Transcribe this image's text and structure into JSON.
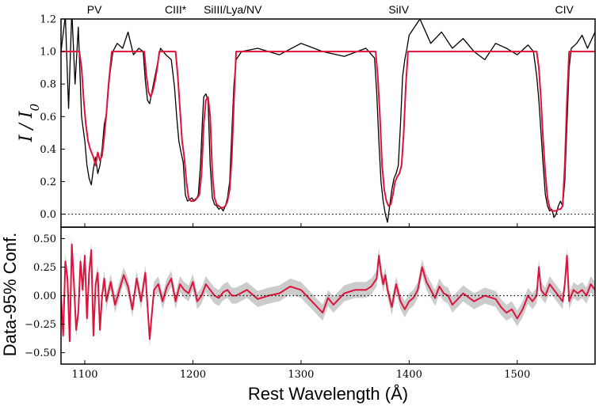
{
  "chart_data": [
    {
      "type": "line",
      "panel": "top",
      "ylabel": "I / I0",
      "xlim": [
        1078,
        1572
      ],
      "ylim": [
        -0.08,
        1.2
      ],
      "yticks": [
        "0.0",
        "0.2",
        "0.4",
        "0.6",
        "0.8",
        "1.0",
        "1.2"
      ],
      "ytick_values": [
        0.0,
        0.2,
        0.4,
        0.6,
        0.8,
        1.0,
        1.2
      ],
      "reference_line": {
        "y": 0.0,
        "style": "dotted"
      },
      "ion_labels": [
        {
          "text": "PV",
          "x": 1102
        },
        {
          "text": "CIII*",
          "x": 1174
        },
        {
          "text": "SiIII/Lya/NV",
          "x": 1210
        },
        {
          "text": "SiIV",
          "x": 1381
        },
        {
          "text": "CIV",
          "x": 1535
        }
      ],
      "series": [
        {
          "color": "#000000",
          "x": [
            1078,
            1082,
            1085,
            1088,
            1091,
            1094,
            1097,
            1100,
            1102,
            1104,
            1106,
            1108,
            1110,
            1112,
            1114,
            1116,
            1118,
            1120,
            1123,
            1126,
            1130,
            1135,
            1140,
            1145,
            1150,
            1154,
            1156,
            1158,
            1160,
            1162,
            1165,
            1170,
            1175,
            1180,
            1183,
            1185,
            1187,
            1189,
            1191,
            1193,
            1195,
            1197,
            1199,
            1201,
            1203,
            1205,
            1207,
            1209,
            1210,
            1212,
            1214,
            1216,
            1218,
            1220,
            1222,
            1224,
            1226,
            1228,
            1230,
            1232,
            1234,
            1236,
            1238,
            1240,
            1245,
            1260,
            1280,
            1300,
            1320,
            1340,
            1360,
            1368,
            1370,
            1372,
            1374,
            1376,
            1378,
            1380,
            1382,
            1384,
            1386,
            1388,
            1390,
            1392,
            1394,
            1396,
            1398,
            1400,
            1410,
            1420,
            1430,
            1440,
            1450,
            1460,
            1470,
            1480,
            1490,
            1500,
            1510,
            1515,
            1518,
            1520,
            1522,
            1524,
            1526,
            1528,
            1530,
            1532,
            1534,
            1536,
            1538,
            1540,
            1542,
            1544,
            1546,
            1548,
            1550,
            1555,
            1560,
            1565,
            1572
          ],
          "y": [
            1.0,
            1.22,
            0.65,
            1.25,
            0.8,
            1.15,
            0.6,
            0.45,
            0.3,
            0.22,
            0.18,
            0.28,
            0.35,
            0.25,
            0.3,
            0.4,
            0.55,
            0.62,
            0.85,
            1.0,
            1.05,
            1.02,
            1.12,
            0.98,
            1.02,
            1.0,
            0.82,
            0.7,
            0.68,
            0.75,
            0.85,
            1.02,
            0.98,
            0.95,
            0.78,
            0.6,
            0.45,
            0.38,
            0.32,
            0.12,
            0.08,
            0.09,
            0.1,
            0.08,
            0.09,
            0.12,
            0.3,
            0.6,
            0.72,
            0.74,
            0.7,
            0.3,
            0.1,
            0.06,
            0.05,
            0.03,
            0.04,
            0.02,
            0.05,
            0.1,
            0.2,
            0.5,
            0.8,
            0.95,
            1.0,
            1.02,
            0.98,
            1.05,
            1.0,
            0.97,
            1.02,
            0.96,
            0.75,
            0.45,
            0.2,
            0.08,
            0.0,
            -0.05,
            0.05,
            0.15,
            0.22,
            0.25,
            0.3,
            0.55,
            0.85,
            0.95,
            1.02,
            1.1,
            1.2,
            1.05,
            1.12,
            1.02,
            1.08,
            1.0,
            0.95,
            1.05,
            1.02,
            0.98,
            1.04,
            1.0,
            0.85,
            0.7,
            0.5,
            0.3,
            0.12,
            0.05,
            0.02,
            0.03,
            -0.02,
            0.0,
            0.05,
            0.08,
            0.05,
            0.2,
            0.55,
            0.9,
            1.02,
            1.05,
            1.1,
            1.02,
            1.12
          ]
        },
        {
          "color": "#dc143c",
          "x": [
            1078,
            1095,
            1097,
            1099,
            1101,
            1103,
            1105,
            1108,
            1110,
            1112,
            1114,
            1116,
            1118,
            1120,
            1122,
            1125,
            1155,
            1157,
            1159,
            1161,
            1163,
            1165,
            1167,
            1169,
            1184,
            1186,
            1188,
            1190,
            1192,
            1194,
            1196,
            1198,
            1200,
            1202,
            1204,
            1206,
            1208,
            1210,
            1212,
            1214,
            1216,
            1218,
            1220,
            1222,
            1224,
            1226,
            1228,
            1230,
            1232,
            1234,
            1236,
            1238,
            1240,
            1369,
            1371,
            1373,
            1375,
            1377,
            1379,
            1381,
            1383,
            1385,
            1387,
            1389,
            1391,
            1393,
            1395,
            1397,
            1399,
            1518,
            1520,
            1522,
            1524,
            1526,
            1528,
            1530,
            1532,
            1534,
            1536,
            1538,
            1540,
            1542,
            1544,
            1546,
            1548,
            1572
          ],
          "y": [
            1.0,
            1.0,
            0.9,
            0.7,
            0.55,
            0.45,
            0.4,
            0.35,
            0.3,
            0.38,
            0.33,
            0.36,
            0.48,
            0.62,
            0.8,
            1.0,
            1.0,
            0.85,
            0.75,
            0.72,
            0.76,
            0.82,
            0.9,
            1.0,
            1.0,
            0.85,
            0.65,
            0.45,
            0.35,
            0.2,
            0.1,
            0.08,
            0.08,
            0.09,
            0.1,
            0.12,
            0.25,
            0.55,
            0.7,
            0.72,
            0.6,
            0.25,
            0.1,
            0.06,
            0.05,
            0.04,
            0.04,
            0.05,
            0.08,
            0.15,
            0.35,
            0.7,
            1.0,
            1.0,
            0.85,
            0.6,
            0.3,
            0.15,
            0.08,
            0.05,
            0.06,
            0.12,
            0.2,
            0.23,
            0.25,
            0.3,
            0.5,
            0.8,
            1.0,
            1.0,
            0.9,
            0.7,
            0.45,
            0.25,
            0.1,
            0.04,
            0.02,
            0.02,
            0.02,
            0.03,
            0.03,
            0.05,
            0.3,
            0.7,
            1.0,
            1.0
          ]
        }
      ]
    },
    {
      "type": "line",
      "panel": "bottom",
      "title": "",
      "xlabel": "Rest Wavelength (Å)",
      "ylabel": "Data-95% Conf.",
      "xlim": [
        1078,
        1572
      ],
      "ylim": [
        -0.6,
        0.6
      ],
      "xticks": [
        "1100",
        "1200",
        "1300",
        "1400",
        "1500"
      ],
      "xtick_values": [
        1100,
        1200,
        1300,
        1400,
        1500
      ],
      "yticks": [
        "−0.50",
        "−0.25",
        "0.00",
        "0.25",
        "0.50"
      ],
      "ytick_values": [
        -0.5,
        -0.25,
        0.0,
        0.25,
        0.5
      ],
      "reference_line": {
        "y": 0.0,
        "style": "dotted"
      },
      "series": [
        {
          "color": "#dc143c",
          "band_color": "#cccccc",
          "x": [
            1078,
            1080,
            1082,
            1084,
            1086,
            1088,
            1090,
            1092,
            1094,
            1096,
            1098,
            1100,
            1102,
            1104,
            1106,
            1108,
            1110,
            1112,
            1114,
            1116,
            1118,
            1120,
            1124,
            1128,
            1132,
            1136,
            1140,
            1144,
            1148,
            1152,
            1156,
            1160,
            1164,
            1168,
            1172,
            1176,
            1180,
            1184,
            1188,
            1192,
            1196,
            1200,
            1204,
            1208,
            1212,
            1216,
            1220,
            1224,
            1228,
            1232,
            1236,
            1240,
            1250,
            1260,
            1270,
            1280,
            1290,
            1300,
            1310,
            1320,
            1325,
            1330,
            1340,
            1350,
            1360,
            1365,
            1370,
            1372,
            1374,
            1376,
            1378,
            1380,
            1384,
            1388,
            1392,
            1396,
            1400,
            1404,
            1408,
            1412,
            1416,
            1420,
            1424,
            1428,
            1432,
            1436,
            1440,
            1450,
            1460,
            1470,
            1480,
            1485,
            1490,
            1495,
            1500,
            1505,
            1510,
            1514,
            1518,
            1520,
            1522,
            1526,
            1530,
            1534,
            1538,
            1542,
            1544,
            1546,
            1548,
            1552,
            1556,
            1560,
            1564,
            1568,
            1572
          ],
          "y": [
            0.0,
            -0.35,
            0.3,
            0.15,
            -0.4,
            0.45,
            0.1,
            -0.3,
            -0.15,
            0.3,
            0.05,
            0.35,
            -0.2,
            0.2,
            0.4,
            -0.35,
            0.1,
            0.2,
            -0.3,
            0.0,
            0.15,
            -0.05,
            0.12,
            -0.08,
            0.05,
            0.18,
            0.08,
            -0.12,
            0.15,
            -0.05,
            0.2,
            -0.38,
            0.05,
            0.1,
            -0.05,
            0.08,
            0.15,
            -0.05,
            0.1,
            0.05,
            0.02,
            0.12,
            -0.05,
            0.0,
            0.1,
            0.05,
            0.0,
            -0.02,
            0.03,
            0.05,
            0.0,
            0.0,
            0.05,
            -0.03,
            0.0,
            0.02,
            0.08,
            0.05,
            -0.05,
            -0.15,
            -0.02,
            -0.08,
            0.02,
            0.05,
            0.05,
            0.08,
            0.15,
            0.35,
            0.2,
            0.1,
            0.18,
            0.05,
            -0.1,
            0.1,
            -0.05,
            -0.12,
            -0.05,
            -0.02,
            0.05,
            0.25,
            0.12,
            0.05,
            -0.02,
            0.08,
            0.02,
            0.0,
            -0.08,
            0.02,
            -0.05,
            0.0,
            -0.03,
            -0.1,
            -0.15,
            -0.12,
            -0.2,
            -0.12,
            0.0,
            -0.05,
            0.0,
            0.25,
            0.05,
            0.0,
            0.1,
            0.05,
            0.0,
            -0.05,
            0.1,
            0.35,
            -0.05,
            0.05,
            0.02,
            0.05,
            0.0,
            0.1,
            0.05
          ]
        }
      ]
    }
  ]
}
